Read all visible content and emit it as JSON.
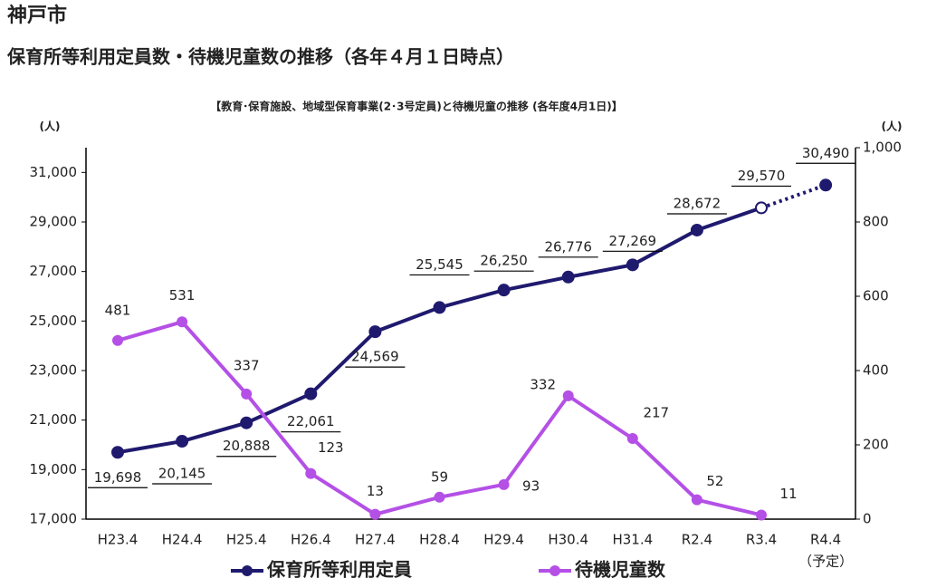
{
  "header": {
    "city": "神戸市",
    "title": "保育所等利用定員数・待機児童数の推移（各年４月１日時点）"
  },
  "chart_data": {
    "type": "line",
    "title": "【教育･保育施設、地域型保育事業(2･3号定員)と待機児童の推移 (各年度4月1日)】",
    "y_label": "(人)",
    "y2_label": "(人)",
    "categories": [
      "H23.4",
      "H24.4",
      "H25.4",
      "H26.4",
      "H27.4",
      "H28.4",
      "H29.4",
      "H30.4",
      "H31.4",
      "R2.4",
      "R3.4",
      "R4.4"
    ],
    "category_note": "（予定）",
    "ylim": [
      17000,
      32000
    ],
    "yticks": [
      {
        "value": 17000,
        "label": "17,000"
      },
      {
        "value": 19000,
        "label": "19,000"
      },
      {
        "value": 21000,
        "label": "21,000"
      },
      {
        "value": 23000,
        "label": "23,000"
      },
      {
        "value": 25000,
        "label": "25,000"
      },
      {
        "value": 27000,
        "label": "27,000"
      },
      {
        "value": 29000,
        "label": "29,000"
      },
      {
        "value": 31000,
        "label": "31,000"
      }
    ],
    "y2lim": [
      0,
      1000
    ],
    "y2ticks": [
      0,
      200,
      400,
      600,
      800,
      {
        "value": 1000,
        "label": "1,000"
      }
    ],
    "legend": "bottom",
    "series": [
      {
        "name": "保育所等利用定員",
        "color": "#1f1a6e",
        "values": [
          19698,
          20145,
          20888,
          22061,
          24569,
          25545,
          26250,
          26776,
          27269,
          28672,
          29570,
          30490
        ],
        "value_labels": [
          "19,698",
          "20,145",
          "20,888",
          "22,061",
          "24,569",
          "25,545",
          "26,250",
          "26,776",
          "27,269",
          "28,672",
          "29,570",
          "30,490"
        ],
        "dashed_from_index": 10
      },
      {
        "name": "待機児童数",
        "color": "#b450e6",
        "axis": "y2",
        "values": [
          481,
          531,
          337,
          123,
          13,
          59,
          93,
          332,
          217,
          52,
          11,
          null
        ]
      }
    ]
  }
}
